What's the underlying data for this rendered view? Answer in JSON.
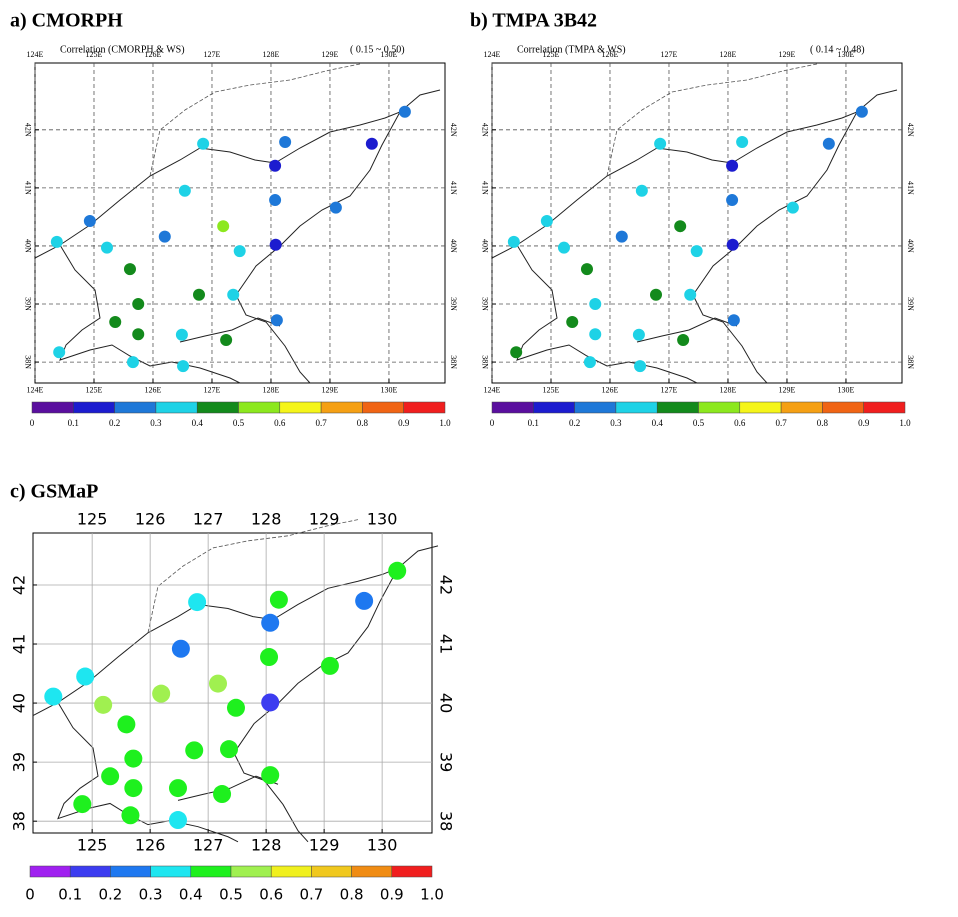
{
  "chart_data": [
    {
      "type": "scatter",
      "title": "a)  CMORPH",
      "subtitle": "Correlation (CMORPH & WS)",
      "range_label": "( 0.15 ~  0.50)",
      "xlim": [
        124,
        130.95
      ],
      "ylim": [
        37.64,
        43.15
      ],
      "xticks": [
        {
          "value": 124,
          "label": "124E"
        },
        {
          "value": 125,
          "label": "125E"
        },
        {
          "value": 126,
          "label": "126E"
        },
        {
          "value": 127,
          "label": "127E"
        },
        {
          "value": 128,
          "label": "128E"
        },
        {
          "value": 129,
          "label": "129E"
        },
        {
          "value": 130,
          "label": "130E"
        }
      ],
      "yticks": [
        {
          "value": 38,
          "label": "38N"
        },
        {
          "value": 39,
          "label": "39N"
        },
        {
          "value": 40,
          "label": "40N"
        },
        {
          "value": 41,
          "label": "41N"
        },
        {
          "value": 42,
          "label": "42N"
        }
      ],
      "grid": true,
      "x": [
        130.27,
        128.24,
        129.71,
        126.85,
        128.07,
        126.54,
        128.07,
        129.1,
        124.93,
        127.19,
        126.2,
        124.37,
        128.08,
        125.22,
        127.47,
        125.61,
        125.75,
        126.78,
        127.36,
        125.36,
        125.75,
        126.49,
        128.1,
        127.24,
        124.41,
        125.66,
        126.51
      ],
      "y": [
        42.31,
        41.79,
        41.76,
        41.76,
        41.38,
        40.95,
        40.79,
        40.66,
        40.43,
        40.34,
        40.16,
        40.07,
        40.02,
        39.97,
        39.91,
        39.6,
        39.0,
        39.16,
        39.16,
        38.69,
        38.48,
        38.47,
        38.72,
        38.38,
        38.17,
        38.0,
        37.93
      ],
      "values": [
        0.25,
        0.25,
        0.15,
        0.35,
        0.15,
        0.35,
        0.25,
        0.25,
        0.25,
        0.55,
        0.25,
        0.35,
        0.15,
        0.35,
        0.35,
        0.45,
        0.45,
        0.45,
        0.35,
        0.45,
        0.45,
        0.35,
        0.25,
        0.45,
        0.35,
        0.35,
        0.35
      ],
      "colorbar_ticks": [
        0,
        0.1,
        0.2,
        0.3,
        0.4,
        0.5,
        0.6,
        0.7,
        0.8,
        0.9,
        {
          "value": 1,
          "label": "1.0"
        }
      ],
      "colors": [
        "#5a0f9e",
        "#1c1ccf",
        "#1e78d8",
        "#1ed2e6",
        "#138a1c",
        "#8ce81e",
        "#f5f51a",
        "#f5a014",
        "#f06414",
        "#f01e1e"
      ]
    },
    {
      "type": "scatter",
      "title": "b)  TMPA  3B42",
      "subtitle": "Correlation (TMPA & WS)",
      "range_label": "( 0.14 ~  0.48)",
      "xlim": [
        124,
        130.95
      ],
      "ylim": [
        37.64,
        43.15
      ],
      "xticks": [
        {
          "value": 124,
          "label": "124E"
        },
        {
          "value": 125,
          "label": "125E"
        },
        {
          "value": 126,
          "label": "126E"
        },
        {
          "value": 127,
          "label": "127E"
        },
        {
          "value": 128,
          "label": "128E"
        },
        {
          "value": 129,
          "label": "129E"
        },
        {
          "value": 130,
          "label": "130E"
        }
      ],
      "yticks": [
        {
          "value": 38,
          "label": "38N"
        },
        {
          "value": 39,
          "label": "39N"
        },
        {
          "value": 40,
          "label": "40N"
        },
        {
          "value": 41,
          "label": "41N"
        },
        {
          "value": 42,
          "label": "42N"
        }
      ],
      "grid": true,
      "x": [
        130.27,
        128.24,
        129.71,
        126.85,
        128.07,
        126.54,
        128.07,
        129.1,
        124.93,
        127.19,
        126.2,
        124.37,
        128.08,
        125.22,
        127.47,
        125.61,
        125.75,
        126.78,
        127.36,
        125.36,
        125.75,
        126.49,
        128.1,
        127.24,
        124.41,
        125.66,
        126.51
      ],
      "y": [
        42.31,
        41.79,
        41.76,
        41.76,
        41.38,
        40.95,
        40.79,
        40.66,
        40.43,
        40.34,
        40.16,
        40.07,
        40.02,
        39.97,
        39.91,
        39.6,
        39.0,
        39.16,
        39.16,
        38.69,
        38.48,
        38.47,
        38.72,
        38.38,
        38.17,
        38.0,
        37.93
      ],
      "values": [
        0.25,
        0.35,
        0.25,
        0.35,
        0.15,
        0.35,
        0.25,
        0.35,
        0.35,
        0.45,
        0.25,
        0.35,
        0.15,
        0.35,
        0.35,
        0.45,
        0.35,
        0.45,
        0.35,
        0.45,
        0.35,
        0.35,
        0.25,
        0.45,
        0.45,
        0.35,
        0.35
      ],
      "colorbar_ticks": [
        0,
        0.1,
        0.2,
        0.3,
        0.4,
        0.5,
        0.6,
        0.7,
        0.8,
        0.9,
        {
          "value": 1,
          "label": "1.0"
        }
      ],
      "colors": [
        "#5a0f9e",
        "#1c1ccf",
        "#1e78d8",
        "#1ed2e6",
        "#138a1c",
        "#8ce81e",
        "#f5f51a",
        "#f5a014",
        "#f06414",
        "#f01e1e"
      ]
    },
    {
      "type": "scatter",
      "title": "c)  GSMaP",
      "xlim": [
        123.98,
        130.86
      ],
      "ylim": [
        37.8,
        42.88
      ],
      "xticks": [
        125,
        126,
        127,
        128,
        129,
        130
      ],
      "yticks": [
        38,
        39,
        40,
        41,
        42
      ],
      "grid": true,
      "x": [
        130.26,
        128.22,
        129.69,
        126.81,
        128.07,
        126.53,
        128.05,
        129.1,
        124.88,
        127.17,
        126.19,
        124.33,
        128.07,
        125.19,
        127.48,
        125.59,
        125.71,
        126.76,
        127.36,
        125.31,
        125.71,
        126.48,
        128.07,
        127.24,
        124.83,
        125.66,
        126.48
      ],
      "y": [
        42.24,
        41.75,
        41.73,
        41.71,
        41.36,
        40.92,
        40.78,
        40.63,
        40.45,
        40.33,
        40.16,
        40.11,
        40.01,
        39.97,
        39.92,
        39.64,
        39.06,
        39.2,
        39.22,
        38.76,
        38.56,
        38.56,
        38.78,
        38.46,
        38.29,
        38.1,
        38.02
      ],
      "values": [
        0.45,
        0.45,
        0.25,
        0.35,
        0.25,
        0.25,
        0.45,
        0.45,
        0.35,
        0.55,
        0.55,
        0.35,
        0.15,
        0.55,
        0.45,
        0.45,
        0.45,
        0.45,
        0.45,
        0.45,
        0.45,
        0.45,
        0.45,
        0.45,
        0.45,
        0.45,
        0.35
      ],
      "colorbar_ticks": [
        0,
        0.1,
        0.2,
        0.3,
        0.4,
        0.5,
        0.6,
        0.7,
        0.8,
        0.9,
        {
          "value": 1,
          "label": "1.0"
        }
      ],
      "colors": [
        "#a020f0",
        "#3c3cf0",
        "#1e78f0",
        "#1ee6f0",
        "#1ef01e",
        "#a0f050",
        "#f0f01e",
        "#f0c81e",
        "#f08c14",
        "#f01e1e"
      ]
    }
  ]
}
